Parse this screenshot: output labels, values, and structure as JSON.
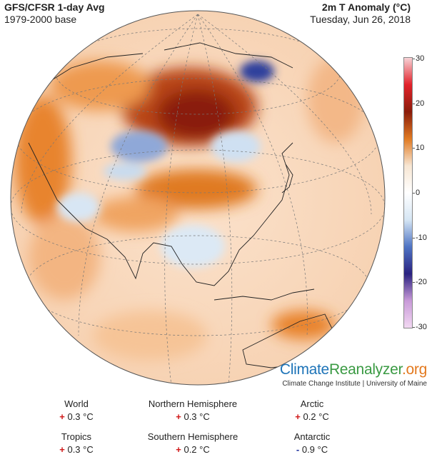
{
  "header": {
    "title_left": "GFS/CFSR 1-day Avg",
    "subtitle_left": "1979-2000 base",
    "title_right": "2m T Anomaly (°C)",
    "subtitle_right": "Tuesday, Jun 26, 2018"
  },
  "colorbar": {
    "ticks": [
      "30",
      "20",
      "10",
      "0",
      "-10",
      "-20",
      "-30"
    ],
    "colors": [
      "#f7d2d6",
      "#e2212a",
      "#8a1c0a",
      "#e07a22",
      "#f7e6d3",
      "#ffffff",
      "#d6e6f4",
      "#4f74c4",
      "#2a2280",
      "#c89ad8",
      "#f2d8f2"
    ]
  },
  "brand": {
    "part1": "Climate",
    "part2": "Reanalyzer",
    "part3": ".org",
    "sub": "Climate Change Institute | University of Maine"
  },
  "stats": [
    {
      "label": "World",
      "sign": "+",
      "value": "0.3 °C"
    },
    {
      "label": "Northern Hemisphere",
      "sign": "+",
      "value": "0.3 °C"
    },
    {
      "label": "Arctic",
      "sign": "+",
      "value": "0.2 °C"
    },
    {
      "label": "Tropics",
      "sign": "+",
      "value": "0.3 °C"
    },
    {
      "label": "Southern Hemisphere",
      "sign": "+",
      "value": "0.2 °C"
    },
    {
      "label": "Antarctic",
      "sign": "-",
      "value": "0.9 °C"
    }
  ],
  "map": {
    "projection": "orthographic",
    "center": "Asia"
  }
}
